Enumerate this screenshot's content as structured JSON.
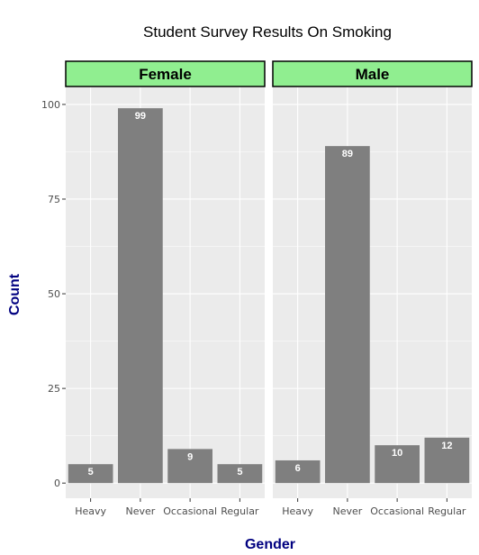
{
  "chart_data": {
    "type": "bar",
    "title": "Student Survey Results On Smoking",
    "xlabel": "Gender",
    "ylabel": "Count",
    "categories": [
      "Heavy",
      "Never",
      "Occasional",
      "Regular"
    ],
    "panels": [
      {
        "name": "Female",
        "values": [
          5,
          99,
          9,
          5
        ]
      },
      {
        "name": "Male",
        "values": [
          6,
          89,
          10,
          12
        ]
      }
    ],
    "ylim": [
      -4,
      104.5
    ],
    "yticks": [
      0,
      25,
      50,
      75,
      100
    ],
    "grid": true,
    "colors": {
      "bar": "#7f7f7f",
      "panel_background": "#ebebeb",
      "grid": "#ffffff",
      "strip_fill": "#90ee90",
      "axis_title": "#000080",
      "bar_label": "#ffffff"
    }
  }
}
